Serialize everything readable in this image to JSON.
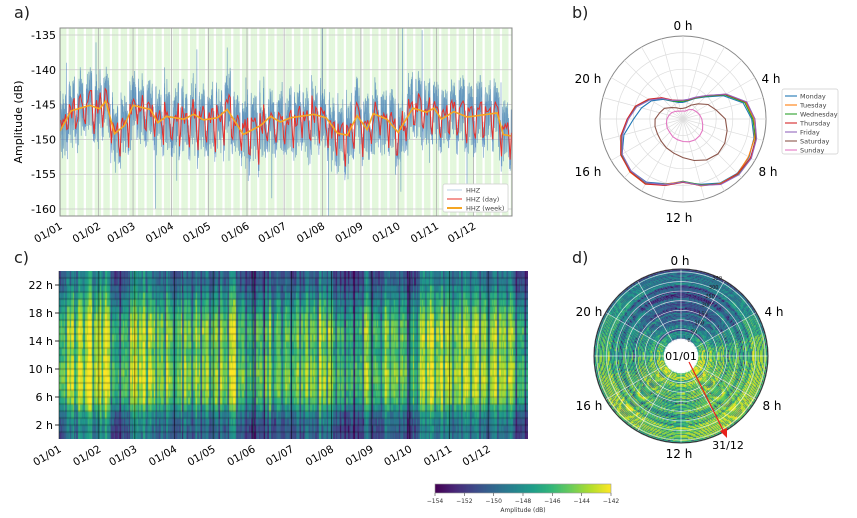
{
  "panels": {
    "a": "a)",
    "b": "b)",
    "c": "c)",
    "d": "d)"
  },
  "chart_data": [
    {
      "panel": "a",
      "type": "line",
      "ylabel": "Amplitude (dB)",
      "ylim": [
        -161,
        -134
      ],
      "yticks": [
        "-135",
        "-140",
        "-145",
        "-150",
        "-155",
        "-160"
      ],
      "xticks": [
        "01/01",
        "01/02",
        "01/03",
        "01/04",
        "01/05",
        "01/06",
        "01/07",
        "01/08",
        "01/09",
        "01/10",
        "01/11",
        "01/12"
      ],
      "grid": true,
      "background": "weekdays shaded light green, weekends white",
      "legend": {
        "placement": "bottom-right",
        "entries": [
          "HHZ",
          "HHZ (day)",
          "HHZ (week)"
        ]
      },
      "colors": {
        "raw": "#3b78b5",
        "day": "#e8302a",
        "week": "#f5a623",
        "shade": "#e3f7dc"
      },
      "series_week": {
        "name": "HHZ (week)",
        "x": [
          "01/01",
          "10/01",
          "25/01",
          "02/02",
          "07/02",
          "14/02",
          "22/02",
          "01/03",
          "15/03",
          "21/03",
          "28/03",
          "11/04",
          "19/04",
          "27/04",
          "08/05",
          "16/05",
          "29/05",
          "12/06",
          "20/06",
          "28/06",
          "06/07",
          "25/07",
          "04/08",
          "13/08",
          "21/08",
          "29/08",
          "06/09",
          "11/09",
          "22/09",
          "01/10",
          "13/10",
          "24/10",
          "30/10",
          "05/11",
          "15/11",
          "26/11",
          "20/12",
          "25/12",
          "31/12"
        ],
        "y": [
          -148.8,
          -145.9,
          -145.1,
          -145.6,
          -144.5,
          -149.2,
          -148.0,
          -145.1,
          -145.7,
          -147.6,
          -146.7,
          -147.1,
          -146.4,
          -147.2,
          -146.9,
          -145.7,
          -149.3,
          -148.0,
          -146.7,
          -147.5,
          -146.9,
          -146.4,
          -146.9,
          -149.1,
          -149.4,
          -146.6,
          -148.6,
          -146.3,
          -147.1,
          -149.0,
          -145.5,
          -146.1,
          -145.5,
          -147.1,
          -146.0,
          -146.8,
          -146.2,
          -149.3,
          -149.5
        ]
      }
    },
    {
      "panel": "b",
      "type": "line",
      "projection": "polar",
      "theta_labels": [
        "0 h",
        "4 h",
        "8 h",
        "12 h",
        "16 h",
        "20 h"
      ],
      "rlim": [
        -155,
        -140
      ],
      "legend": {
        "placement": "right"
      },
      "hours": [
        0,
        1,
        2,
        3,
        4,
        5,
        6,
        7,
        8,
        9,
        10,
        11,
        12,
        13,
        14,
        15,
        16,
        17,
        18,
        19,
        20,
        21,
        22,
        23
      ],
      "series": [
        {
          "name": "Monday",
          "color": "#1f77b4",
          "values": [
            -151.9,
            -151.5,
            -150.6,
            -149.2,
            -146.3,
            -143.4,
            -142.2,
            -141.3,
            -140.8,
            -140.7,
            -141.2,
            -142.4,
            -143.2,
            -142.5,
            -141.4,
            -141.3,
            -141.9,
            -143.6,
            -145.8,
            -147.0,
            -148.2,
            -149.8,
            -151.2,
            -151.8
          ]
        },
        {
          "name": "Tuesday",
          "color": "#ff7f0e",
          "values": [
            -151.6,
            -151.3,
            -150.4,
            -148.9,
            -145.9,
            -143.0,
            -141.8,
            -141.2,
            -140.9,
            -140.6,
            -141.1,
            -142.1,
            -143.4,
            -142.4,
            -141.0,
            -141.0,
            -141.7,
            -143.2,
            -144.7,
            -145.9,
            -147.7,
            -149.5,
            -151.0,
            -151.5
          ]
        },
        {
          "name": "Wednesday",
          "color": "#2ca02c",
          "values": [
            -151.7,
            -151.4,
            -150.5,
            -149.0,
            -146.0,
            -143.1,
            -142.0,
            -141.0,
            -140.4,
            -140.4,
            -141.0,
            -142.3,
            -143.4,
            -142.2,
            -141.2,
            -141.2,
            -141.7,
            -143.2,
            -144.8,
            -146.0,
            -147.8,
            -149.6,
            -151.1,
            -151.6
          ]
        },
        {
          "name": "Thursday",
          "color": "#d62728",
          "values": [
            -151.5,
            -151.3,
            -150.4,
            -148.8,
            -145.8,
            -142.8,
            -141.6,
            -140.9,
            -140.5,
            -140.6,
            -141.0,
            -142.2,
            -143.2,
            -142.2,
            -141.0,
            -141.1,
            -141.6,
            -143.0,
            -144.6,
            -145.8,
            -147.6,
            -149.4,
            -150.9,
            -151.4
          ]
        },
        {
          "name": "Friday",
          "color": "#9467bd",
          "values": [
            -151.5,
            -151.2,
            -150.3,
            -148.8,
            -145.7,
            -142.7,
            -141.6,
            -140.8,
            -140.3,
            -140.3,
            -140.9,
            -142.2,
            -143.3,
            -142.3,
            -141.3,
            -141.3,
            -141.9,
            -143.3,
            -144.8,
            -146.1,
            -147.9,
            -149.6,
            -151.0,
            -151.4
          ]
        },
        {
          "name": "Saturday",
          "color": "#8c564b",
          "values": [
            -153.0,
            -152.8,
            -152.0,
            -151.0,
            -149.6,
            -148.6,
            -147.1,
            -146.5,
            -146.0,
            -145.8,
            -146.2,
            -147.0,
            -147.8,
            -148.4,
            -148.8,
            -149.2,
            -149.5,
            -149.6,
            -149.8,
            -150.5,
            -151.0,
            -152.0,
            -152.6,
            -153.0
          ]
        },
        {
          "name": "Sunday",
          "color": "#e377c2",
          "values": [
            -153.5,
            -153.5,
            -153.0,
            -152.5,
            -152.2,
            -151.8,
            -151.5,
            -151.2,
            -150.8,
            -150.6,
            -150.5,
            -150.6,
            -150.8,
            -151.0,
            -151.2,
            -151.5,
            -151.6,
            -151.8,
            -152.0,
            -152.3,
            -152.6,
            -153.0,
            -153.3,
            -153.5
          ]
        }
      ]
    },
    {
      "panel": "c",
      "type": "heatmap",
      "yticks": [
        "2 h",
        "6 h",
        "10 h",
        "14 h",
        "18 h",
        "22 h"
      ],
      "xticks": [
        "01/01",
        "01/02",
        "01/03",
        "01/04",
        "01/05",
        "01/06",
        "01/07",
        "01/08",
        "01/09",
        "01/10",
        "01/11",
        "01/12"
      ],
      "colormap": "viridis",
      "clim": [
        -154,
        -142
      ]
    },
    {
      "panel": "d",
      "type": "heatmap",
      "projection": "polar",
      "theta_labels": [
        "0 h",
        "4 h",
        "8 h",
        "12 h",
        "16 h",
        "20 h"
      ],
      "radial_ticks": [
        "0",
        "50",
        "100",
        "150",
        "200",
        "250",
        "300",
        "350"
      ],
      "start_label": "01/01",
      "end_label": "31/12",
      "arrow_color": "#e8201a",
      "colormap": "viridis",
      "clim": [
        -154,
        -142
      ]
    },
    {
      "panel": "colorbar",
      "type": "colorbar",
      "label": "Amplitude (dB)",
      "ticks": [
        "−154",
        "−152",
        "−150",
        "−148",
        "−146",
        "−144",
        "−142"
      ],
      "range": [
        -154,
        -142
      ],
      "colormap": "viridis"
    }
  ]
}
